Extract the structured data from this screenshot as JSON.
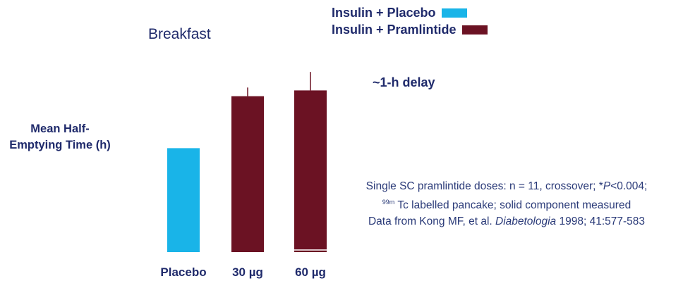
{
  "chart_data": {
    "type": "bar",
    "title": "Breakfast",
    "ylabel": "Mean Half-Emptying Time (h)",
    "xlabel": "",
    "categories": [
      "Placebo",
      "30 µg",
      "60 µg"
    ],
    "values": [
      1.8,
      2.7,
      2.8
    ],
    "errors": [
      0,
      0.15,
      0.32
    ],
    "ylim": [
      0,
      3.5
    ],
    "colors": [
      "#19b4e8",
      "#6b1223",
      "#6b1223"
    ],
    "grid": false,
    "legend_position": "top-right",
    "legend": [
      {
        "label": "Insulin + Placebo",
        "color": "#19b4e8"
      },
      {
        "label": "Insulin + Pramlintide",
        "color": "#6b1223"
      }
    ],
    "annotation": "~1-h delay"
  },
  "footnote": {
    "line1_pre": "Single SC pramlintide doses: n = 11, crossover; *",
    "line1_p": "P",
    "line1_post": "<0.004;",
    "line2_sup": "99m",
    "line2": " Tc labelled  pancake; solid component measured",
    "line3_pre": "Data from Kong MF, et al.  ",
    "line3_journal": "Diabetologia",
    "line3_post": " 1998; 41:577-583"
  }
}
